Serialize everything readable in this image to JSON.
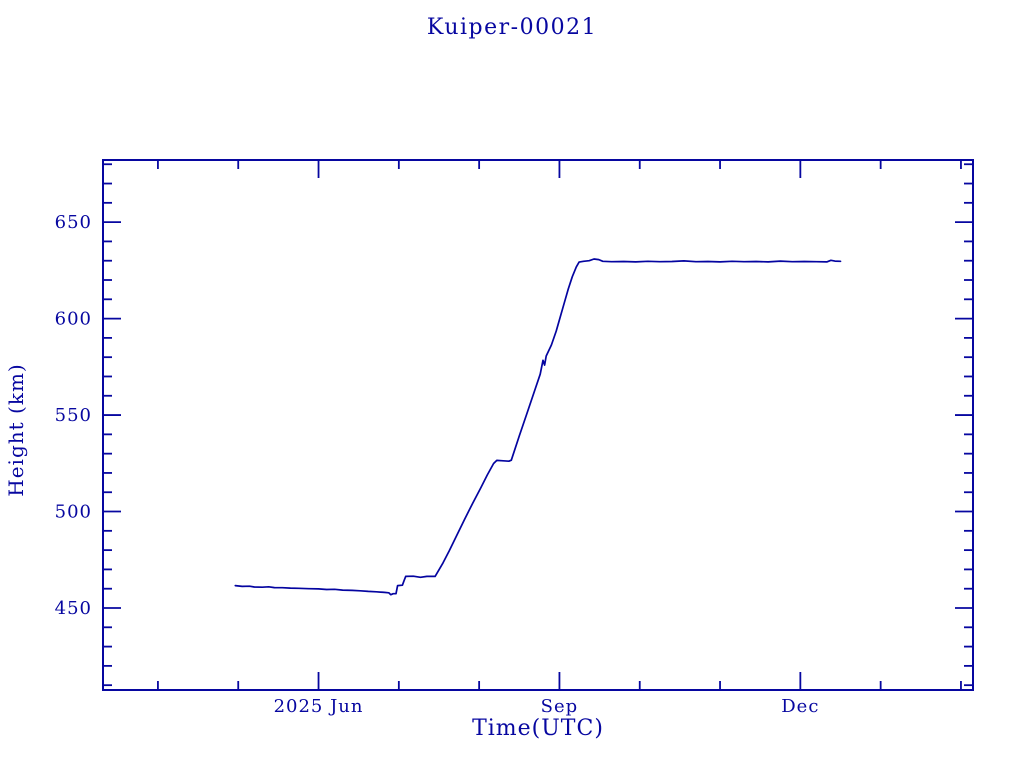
{
  "chart_data": {
    "type": "line",
    "title": "Kuiper-00021",
    "xlabel": "Time(UTC)",
    "ylabel": "Height (km)",
    "line_color": "#0404a0",
    "axis_color": "#0707a0",
    "background": "#ffffff",
    "grid": false,
    "legend": null,
    "x_unit": "months since 2025-06-01",
    "xlim": [
      -2.684,
      8.15
    ],
    "ylim": [
      407.5,
      682.2
    ],
    "x_major_ticks": [
      {
        "pos": 0,
        "label": "2025 Jun"
      },
      {
        "pos": 3,
        "label": "Sep"
      },
      {
        "pos": 6,
        "label": "Dec"
      }
    ],
    "x_minor_ticks": [
      -2,
      -1,
      1,
      2,
      4,
      5,
      7,
      8
    ],
    "y_major_ticks": [
      {
        "pos": 450,
        "label": "450"
      },
      {
        "pos": 500,
        "label": "500"
      },
      {
        "pos": 550,
        "label": "550"
      },
      {
        "pos": 600,
        "label": "600"
      },
      {
        "pos": 650,
        "label": "650"
      }
    ],
    "y_minor_step": 10,
    "series": [
      {
        "name": "height",
        "points": [
          [
            -1.037,
            461.6
          ],
          [
            -0.95,
            461.2
          ],
          [
            -0.86,
            461.3
          ],
          [
            -0.8,
            460.9
          ],
          [
            -0.7,
            460.8
          ],
          [
            -0.62,
            461.0
          ],
          [
            -0.55,
            460.6
          ],
          [
            -0.45,
            460.5
          ],
          [
            -0.35,
            460.3
          ],
          [
            -0.25,
            460.2
          ],
          [
            -0.12,
            460.0
          ],
          [
            0.0,
            459.9
          ],
          [
            0.1,
            459.6
          ],
          [
            0.2,
            459.7
          ],
          [
            0.3,
            459.3
          ],
          [
            0.42,
            459.1
          ],
          [
            0.52,
            458.9
          ],
          [
            0.62,
            458.6
          ],
          [
            0.72,
            458.4
          ],
          [
            0.82,
            458.1
          ],
          [
            0.875,
            457.9
          ],
          [
            0.9,
            456.9
          ],
          [
            0.93,
            457.4
          ],
          [
            0.965,
            457.4
          ],
          [
            0.985,
            461.6
          ],
          [
            1.045,
            461.8
          ],
          [
            1.065,
            464.2
          ],
          [
            1.085,
            466.4
          ],
          [
            1.18,
            466.5
          ],
          [
            1.27,
            465.9
          ],
          [
            1.35,
            466.4
          ],
          [
            1.452,
            466.4
          ],
          [
            1.55,
            473.4
          ],
          [
            1.63,
            479.8
          ],
          [
            1.72,
            487.6
          ],
          [
            1.82,
            496.1
          ],
          [
            1.92,
            504.3
          ],
          [
            2.02,
            512.2
          ],
          [
            2.1,
            518.9
          ],
          [
            2.18,
            524.9
          ],
          [
            2.22,
            526.5
          ],
          [
            2.3,
            526.3
          ],
          [
            2.37,
            526.1
          ],
          [
            2.4,
            526.6
          ],
          [
            2.5,
            539.2
          ],
          [
            2.6,
            551.4
          ],
          [
            2.7,
            563.8
          ],
          [
            2.76,
            571.2
          ],
          [
            2.795,
            578.4
          ],
          [
            2.815,
            575.9
          ],
          [
            2.835,
            580.6
          ],
          [
            2.9,
            586.3
          ],
          [
            2.96,
            593.5
          ],
          [
            3.01,
            600.8
          ],
          [
            3.06,
            608.2
          ],
          [
            3.11,
            615.4
          ],
          [
            3.16,
            621.7
          ],
          [
            3.21,
            626.8
          ],
          [
            3.245,
            629.3
          ],
          [
            3.3,
            629.7
          ],
          [
            3.37,
            630.0
          ],
          [
            3.43,
            630.9
          ],
          [
            3.49,
            630.6
          ],
          [
            3.54,
            629.7
          ],
          [
            3.65,
            629.5
          ],
          [
            3.8,
            629.6
          ],
          [
            3.95,
            629.4
          ],
          [
            4.1,
            629.7
          ],
          [
            4.25,
            629.5
          ],
          [
            4.4,
            629.6
          ],
          [
            4.55,
            629.9
          ],
          [
            4.7,
            629.5
          ],
          [
            4.85,
            629.6
          ],
          [
            5.0,
            629.4
          ],
          [
            5.15,
            629.7
          ],
          [
            5.3,
            629.5
          ],
          [
            5.45,
            629.6
          ],
          [
            5.6,
            629.4
          ],
          [
            5.75,
            629.8
          ],
          [
            5.9,
            629.5
          ],
          [
            6.05,
            629.6
          ],
          [
            6.2,
            629.5
          ],
          [
            6.33,
            629.4
          ],
          [
            6.38,
            630.2
          ],
          [
            6.43,
            629.8
          ],
          [
            6.5,
            629.7
          ]
        ]
      }
    ]
  }
}
